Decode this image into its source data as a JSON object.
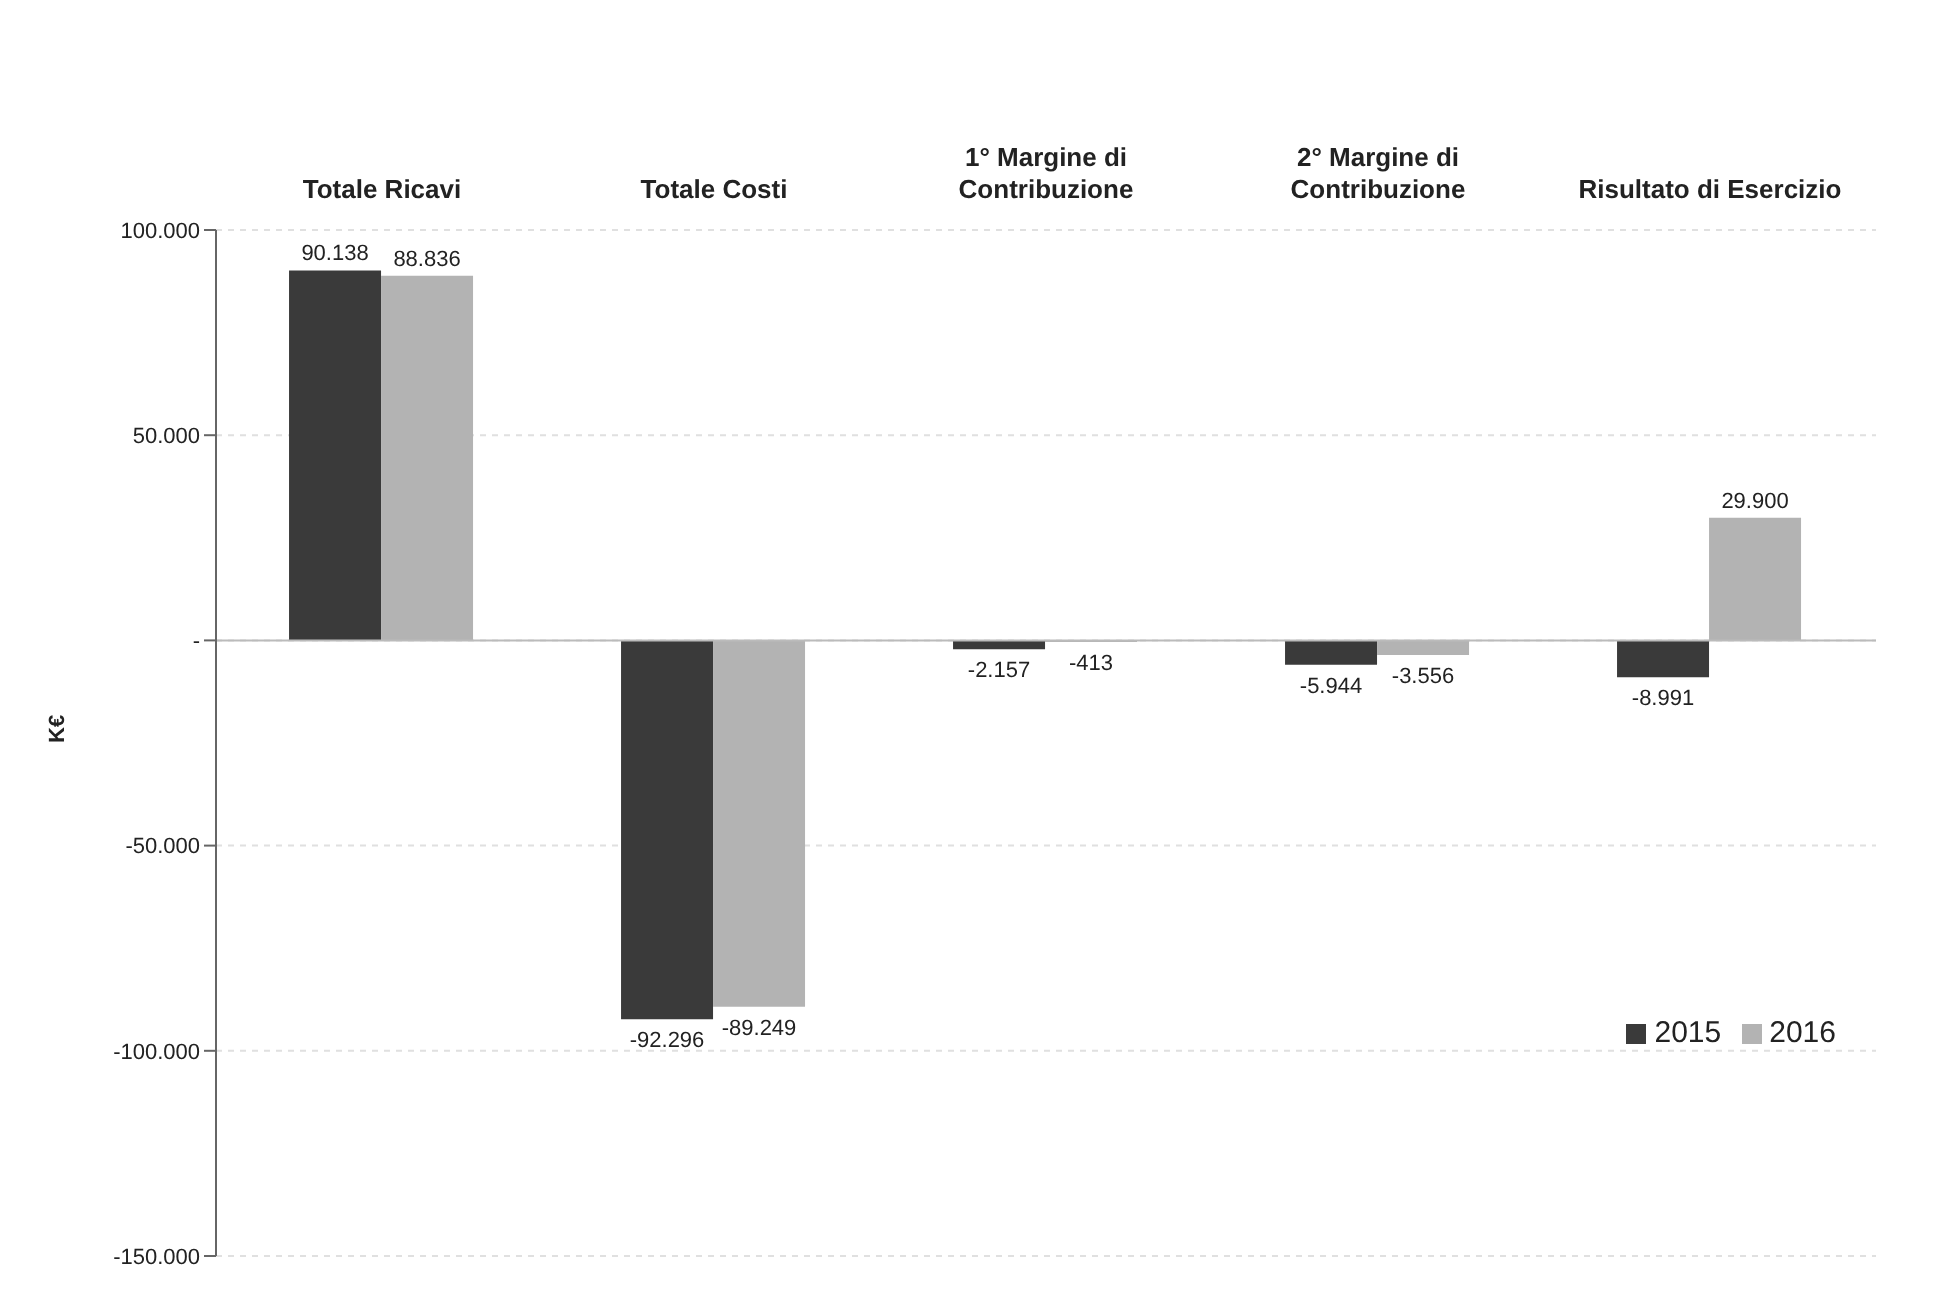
{
  "chart_data": {
    "type": "bar",
    "ylabel": "K€",
    "categories": [
      "Totale Ricavi",
      "Totale Costi",
      "1° Margine di Contribuzione",
      "2° Margine di Contribuzione",
      "Risultato di Esercizio"
    ],
    "series": [
      {
        "name": "2015",
        "color": "#3a3a3a",
        "values": [
          90138,
          -92296,
          -2157,
          -5944,
          -8991
        ],
        "value_labels": [
          "90.138",
          "-92.296",
          "-2.157",
          "-5.944",
          "-8.991"
        ]
      },
      {
        "name": "2016",
        "color": "#b3b3b3",
        "values": [
          88836,
          -89249,
          -413,
          -3556,
          29900
        ],
        "value_labels": [
          "88.836",
          "-89.249",
          "-413",
          "-3.556",
          "29.900"
        ]
      }
    ],
    "ylim": [
      -150000,
      100000
    ],
    "yticks": [
      {
        "value": -150000,
        "label": "-150.000"
      },
      {
        "value": -100000,
        "label": "-100.000"
      },
      {
        "value": -50000,
        "label": "-50.000"
      },
      {
        "value": 0,
        "label": "-"
      },
      {
        "value": 50000,
        "label": "50.000"
      },
      {
        "value": 100000,
        "label": "100.000"
      }
    ],
    "grid": "y",
    "legend": "right"
  }
}
